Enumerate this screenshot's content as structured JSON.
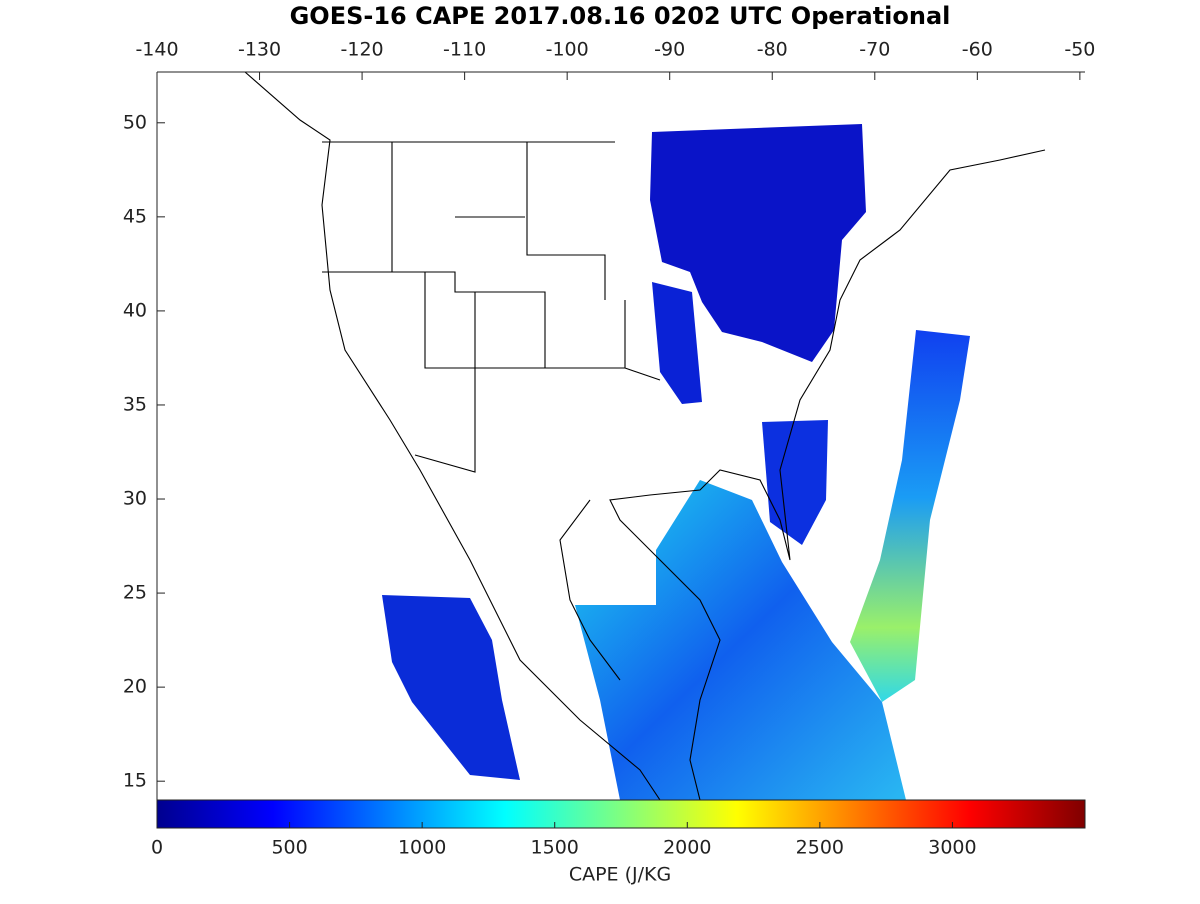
{
  "title": "GOES-16 CAPE 2017.08.16 0202 UTC Operational",
  "map": {
    "xlim": [
      -140,
      -49.5
    ],
    "ylim": [
      14,
      52.7
    ],
    "xticks": [
      -140,
      -130,
      -120,
      -110,
      -100,
      -90,
      -80,
      -70,
      -60,
      -50
    ],
    "yticks": [
      15,
      20,
      25,
      30,
      35,
      40,
      45,
      50
    ]
  },
  "colorbar": {
    "label": "CAPE (J/KG",
    "clim": [
      0,
      3500
    ],
    "ticks": [
      0,
      500,
      1000,
      1500,
      2000,
      2500,
      3000
    ]
  }
}
